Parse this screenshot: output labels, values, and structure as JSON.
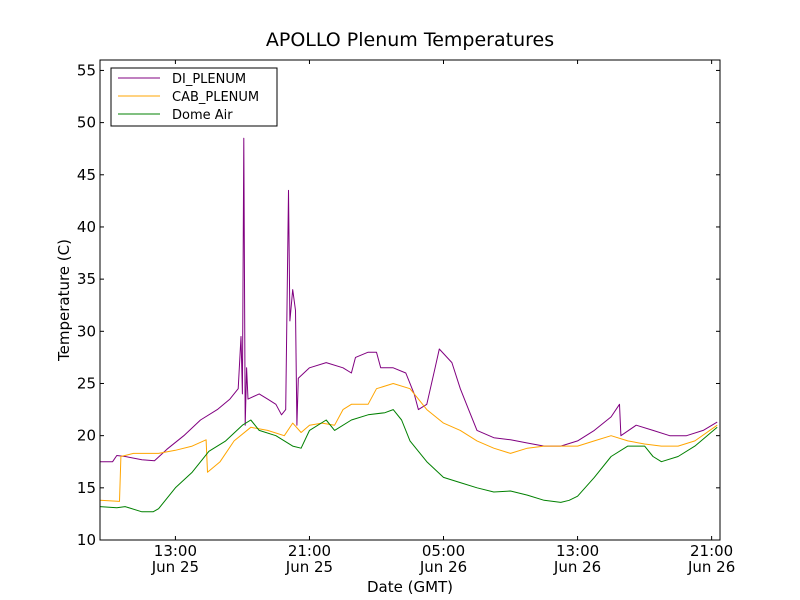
{
  "chart_data": {
    "type": "line",
    "title": "APOLLO Plenum Temperatures",
    "xlabel": "Date (GMT)",
    "ylabel": "Temperature (C)",
    "xlim": [
      "2013-06-25 08:30",
      "2013-06-26 21:30"
    ],
    "ylim": [
      10,
      56
    ],
    "yticks": [
      10,
      15,
      20,
      25,
      30,
      35,
      40,
      45,
      50,
      55
    ],
    "xticks": [
      {
        "at": "2013-06-25 13:00",
        "line1": "13:00",
        "line2": "Jun 25"
      },
      {
        "at": "2013-06-25 21:00",
        "line1": "21:00",
        "line2": "Jun 25"
      },
      {
        "at": "2013-06-26 05:00",
        "line1": "05:00",
        "line2": "Jun 26"
      },
      {
        "at": "2013-06-26 13:00",
        "line1": "13:00",
        "line2": "Jun 26"
      },
      {
        "at": "2013-06-26 21:00",
        "line1": "21:00",
        "line2": "Jun 26"
      }
    ],
    "legend_position": "top-left",
    "grid": false,
    "series": [
      {
        "name": "DI_PLENUM",
        "color": "#800080",
        "points": [
          [
            "2013-06-25 08:30",
            17.5
          ],
          [
            "2013-06-25 09:15",
            17.5
          ],
          [
            "2013-06-25 09:30",
            18.1
          ],
          [
            "2013-06-25 10:00",
            18.0
          ],
          [
            "2013-06-25 11:00",
            17.7
          ],
          [
            "2013-06-25 11:45",
            17.6
          ],
          [
            "2013-06-25 12:30",
            18.7
          ],
          [
            "2013-06-25 13:30",
            20.0
          ],
          [
            "2013-06-25 14:30",
            21.5
          ],
          [
            "2013-06-25 15:30",
            22.5
          ],
          [
            "2013-06-25 16:15",
            23.5
          ],
          [
            "2013-06-25 16:45",
            24.5
          ],
          [
            "2013-06-25 16:55",
            29.5
          ],
          [
            "2013-06-25 17:00",
            24.0
          ],
          [
            "2013-06-25 17:05",
            48.5
          ],
          [
            "2013-06-25 17:10",
            21.0
          ],
          [
            "2013-06-25 17:15",
            26.5
          ],
          [
            "2013-06-25 17:20",
            23.5
          ],
          [
            "2013-06-25 18:00",
            24.0
          ],
          [
            "2013-06-25 18:30",
            23.5
          ],
          [
            "2013-06-25 19:00",
            23.0
          ],
          [
            "2013-06-25 19:20",
            22.0
          ],
          [
            "2013-06-25 19:35",
            22.5
          ],
          [
            "2013-06-25 19:45",
            43.5
          ],
          [
            "2013-06-25 19:50",
            31.0
          ],
          [
            "2013-06-25 20:00",
            34.0
          ],
          [
            "2013-06-25 20:10",
            32.0
          ],
          [
            "2013-06-25 20:15",
            21.0
          ],
          [
            "2013-06-25 20:20",
            25.5
          ],
          [
            "2013-06-25 21:00",
            26.5
          ],
          [
            "2013-06-25 22:00",
            27.0
          ],
          [
            "2013-06-25 23:00",
            26.5
          ],
          [
            "2013-06-25 23:30",
            26.0
          ],
          [
            "2013-06-25 23:45",
            27.5
          ],
          [
            "2013-06-26 00:30",
            28.0
          ],
          [
            "2013-06-26 01:00",
            28.0
          ],
          [
            "2013-06-26 01:15",
            26.5
          ],
          [
            "2013-06-26 02:00",
            26.5
          ],
          [
            "2013-06-26 02:45",
            26.0
          ],
          [
            "2013-06-26 03:15",
            24.0
          ],
          [
            "2013-06-26 03:30",
            22.5
          ],
          [
            "2013-06-26 04:00",
            23.0
          ],
          [
            "2013-06-26 04:30",
            26.5
          ],
          [
            "2013-06-26 04:45",
            28.3
          ],
          [
            "2013-06-26 05:30",
            27.0
          ],
          [
            "2013-06-26 06:00",
            24.5
          ],
          [
            "2013-06-26 06:30",
            22.5
          ],
          [
            "2013-06-26 07:00",
            20.5
          ],
          [
            "2013-06-26 08:00",
            19.8
          ],
          [
            "2013-06-26 09:00",
            19.6
          ],
          [
            "2013-06-26 10:00",
            19.3
          ],
          [
            "2013-06-26 11:00",
            19.0
          ],
          [
            "2013-06-26 12:00",
            19.0
          ],
          [
            "2013-06-26 13:00",
            19.5
          ],
          [
            "2013-06-26 14:00",
            20.5
          ],
          [
            "2013-06-26 15:00",
            21.8
          ],
          [
            "2013-06-26 15:30",
            23.0
          ],
          [
            "2013-06-26 15:35",
            20.0
          ],
          [
            "2013-06-26 16:30",
            21.0
          ],
          [
            "2013-06-26 17:30",
            20.5
          ],
          [
            "2013-06-26 18:30",
            20.0
          ],
          [
            "2013-06-26 19:30",
            20.0
          ],
          [
            "2013-06-26 20:30",
            20.5
          ],
          [
            "2013-06-26 21:20",
            21.3
          ]
        ]
      },
      {
        "name": "CAB_PLENUM",
        "color": "#FFA500",
        "points": [
          [
            "2013-06-25 08:30",
            13.8
          ],
          [
            "2013-06-25 09:40",
            13.7
          ],
          [
            "2013-06-25 09:45",
            18.0
          ],
          [
            "2013-06-25 10:30",
            18.3
          ],
          [
            "2013-06-25 12:00",
            18.3
          ],
          [
            "2013-06-25 13:00",
            18.6
          ],
          [
            "2013-06-25 14:00",
            19.0
          ],
          [
            "2013-06-25 14:50",
            19.6
          ],
          [
            "2013-06-25 14:55",
            16.5
          ],
          [
            "2013-06-25 15:40",
            17.5
          ],
          [
            "2013-06-25 16:30",
            19.5
          ],
          [
            "2013-06-25 17:30",
            20.8
          ],
          [
            "2013-06-25 18:30",
            20.5
          ],
          [
            "2013-06-25 19:30",
            20.0
          ],
          [
            "2013-06-25 20:00",
            21.2
          ],
          [
            "2013-06-25 20:30",
            20.3
          ],
          [
            "2013-06-25 21:00",
            21.0
          ],
          [
            "2013-06-25 21:45",
            21.2
          ],
          [
            "2013-06-25 22:30",
            21.0
          ],
          [
            "2013-06-25 23:00",
            22.5
          ],
          [
            "2013-06-25 23:30",
            23.0
          ],
          [
            "2013-06-26 00:30",
            23.0
          ],
          [
            "2013-06-26 01:00",
            24.5
          ],
          [
            "2013-06-26 02:00",
            25.0
          ],
          [
            "2013-06-26 03:00",
            24.5
          ],
          [
            "2013-06-26 03:30",
            23.5
          ],
          [
            "2013-06-26 04:00",
            22.5
          ],
          [
            "2013-06-26 05:00",
            21.2
          ],
          [
            "2013-06-26 06:00",
            20.5
          ],
          [
            "2013-06-26 07:00",
            19.5
          ],
          [
            "2013-06-26 08:00",
            18.8
          ],
          [
            "2013-06-26 09:00",
            18.3
          ],
          [
            "2013-06-26 10:00",
            18.8
          ],
          [
            "2013-06-26 11:00",
            19.0
          ],
          [
            "2013-06-26 12:00",
            19.0
          ],
          [
            "2013-06-26 13:00",
            19.0
          ],
          [
            "2013-06-26 14:00",
            19.5
          ],
          [
            "2013-06-26 15:00",
            20.0
          ],
          [
            "2013-06-26 16:00",
            19.5
          ],
          [
            "2013-06-26 17:00",
            19.2
          ],
          [
            "2013-06-26 18:00",
            19.0
          ],
          [
            "2013-06-26 19:00",
            19.0
          ],
          [
            "2013-06-26 20:00",
            19.5
          ],
          [
            "2013-06-26 21:20",
            21.0
          ]
        ]
      },
      {
        "name": "Dome Air",
        "color": "#008000",
        "points": [
          [
            "2013-06-25 08:30",
            13.2
          ],
          [
            "2013-06-25 09:30",
            13.1
          ],
          [
            "2013-06-25 10:00",
            13.2
          ],
          [
            "2013-06-25 11:00",
            12.7
          ],
          [
            "2013-06-25 11:40",
            12.7
          ],
          [
            "2013-06-25 12:00",
            13.0
          ],
          [
            "2013-06-25 13:00",
            15.0
          ],
          [
            "2013-06-25 14:00",
            16.5
          ],
          [
            "2013-06-25 15:00",
            18.5
          ],
          [
            "2013-06-25 16:00",
            19.5
          ],
          [
            "2013-06-25 17:00",
            21.0
          ],
          [
            "2013-06-25 17:30",
            21.5
          ],
          [
            "2013-06-25 18:00",
            20.5
          ],
          [
            "2013-06-25 19:00",
            20.0
          ],
          [
            "2013-06-25 20:00",
            19.0
          ],
          [
            "2013-06-25 20:30",
            18.8
          ],
          [
            "2013-06-25 21:00",
            20.5
          ],
          [
            "2013-06-25 22:00",
            21.5
          ],
          [
            "2013-06-25 22:30",
            20.5
          ],
          [
            "2013-06-25 23:30",
            21.5
          ],
          [
            "2013-06-26 00:30",
            22.0
          ],
          [
            "2013-06-26 01:30",
            22.2
          ],
          [
            "2013-06-26 02:00",
            22.5
          ],
          [
            "2013-06-26 02:30",
            21.5
          ],
          [
            "2013-06-26 03:00",
            19.5
          ],
          [
            "2013-06-26 04:00",
            17.5
          ],
          [
            "2013-06-26 05:00",
            16.0
          ],
          [
            "2013-06-26 06:00",
            15.5
          ],
          [
            "2013-06-26 07:00",
            15.0
          ],
          [
            "2013-06-26 08:00",
            14.6
          ],
          [
            "2013-06-26 09:00",
            14.7
          ],
          [
            "2013-06-26 10:00",
            14.3
          ],
          [
            "2013-06-26 11:00",
            13.8
          ],
          [
            "2013-06-26 12:00",
            13.6
          ],
          [
            "2013-06-26 12:30",
            13.8
          ],
          [
            "2013-06-26 13:00",
            14.2
          ],
          [
            "2013-06-26 14:00",
            16.0
          ],
          [
            "2013-06-26 15:00",
            18.0
          ],
          [
            "2013-06-26 16:00",
            19.0
          ],
          [
            "2013-06-26 17:00",
            19.0
          ],
          [
            "2013-06-26 17:30",
            18.0
          ],
          [
            "2013-06-26 18:00",
            17.5
          ],
          [
            "2013-06-26 19:00",
            18.0
          ],
          [
            "2013-06-26 20:00",
            19.0
          ],
          [
            "2013-06-26 21:20",
            20.8
          ]
        ]
      }
    ]
  }
}
